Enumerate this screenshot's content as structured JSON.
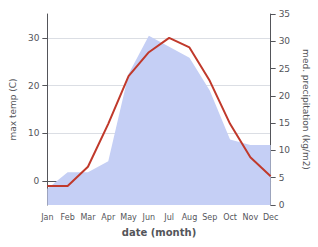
{
  "chart_data": {
    "type": "line",
    "categories": [
      "Jan",
      "Feb",
      "Mar",
      "Apr",
      "May",
      "Jun",
      "Jul",
      "Aug",
      "Sep",
      "Oct",
      "Nov",
      "Dec"
    ],
    "series": [
      {
        "type": "area",
        "color": "#c5cff5",
        "axis": "y2",
        "values": [
          3,
          6,
          6,
          8,
          24,
          31,
          29,
          27,
          21,
          12,
          11,
          11
        ]
      },
      {
        "type": "line",
        "color": "#c0392b",
        "values": [
          -1,
          -1,
          3,
          12,
          22,
          27,
          30,
          28,
          21,
          12,
          5,
          1
        ]
      }
    ],
    "xlabel": "date (month)",
    "ylabel": "max temp (C)",
    "y2label": "med. precipitation (kg/m2)",
    "ylim": [
      -5,
      35
    ],
    "yticks": [
      0,
      10,
      20,
      30
    ],
    "y2lim": [
      0,
      35
    ],
    "y2ticks": [
      0,
      5,
      10,
      15,
      20,
      25,
      30,
      35
    ],
    "grid": true
  }
}
